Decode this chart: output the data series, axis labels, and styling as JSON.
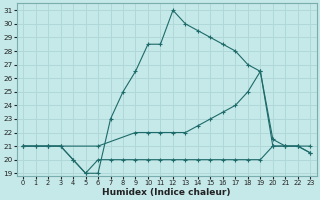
{
  "xlabel": "Humidex (Indice chaleur)",
  "bg_color": "#c5e8e8",
  "line_color": "#1e6b6b",
  "grid_color": "#b0d8d8",
  "ylim": [
    19,
    31
  ],
  "xlim": [
    0,
    23
  ],
  "yticks": [
    19,
    20,
    21,
    22,
    23,
    24,
    25,
    26,
    27,
    28,
    29,
    30,
    31
  ],
  "xticks": [
    0,
    1,
    2,
    3,
    4,
    5,
    6,
    7,
    8,
    9,
    10,
    11,
    12,
    13,
    14,
    15,
    16,
    17,
    18,
    19,
    20,
    21,
    22,
    23
  ],
  "series": [
    {
      "x": [
        0,
        1,
        2,
        3,
        4,
        5,
        6,
        7,
        8,
        9,
        10,
        11,
        12,
        13,
        14,
        15,
        16,
        17,
        18,
        19,
        20,
        21,
        22,
        23
      ],
      "y": [
        21,
        21,
        21,
        21,
        20,
        19,
        19,
        23,
        25,
        26.5,
        28.5,
        28.5,
        31,
        30,
        29.5,
        29,
        28.5,
        28,
        27,
        26.5,
        21,
        21,
        21,
        20.5
      ]
    },
    {
      "x": [
        0,
        2,
        6,
        9,
        10,
        11,
        12,
        13,
        14,
        15,
        16,
        17,
        18,
        19,
        20,
        21,
        22,
        23
      ],
      "y": [
        21,
        21,
        21,
        22,
        22,
        22,
        22,
        22,
        22.5,
        23,
        23.5,
        24,
        25,
        26.5,
        21.5,
        21,
        21,
        20.5
      ]
    },
    {
      "x": [
        0,
        1,
        2,
        3,
        4,
        5,
        6,
        7,
        8,
        9,
        10,
        11,
        12,
        13,
        14,
        15,
        16,
        17,
        18,
        19,
        20,
        21,
        22,
        23
      ],
      "y": [
        21,
        21,
        21,
        21,
        20,
        19,
        20,
        20,
        20,
        20,
        20,
        20,
        20,
        20,
        20,
        20,
        20,
        20,
        20,
        20,
        21,
        21,
        21,
        21
      ]
    }
  ]
}
